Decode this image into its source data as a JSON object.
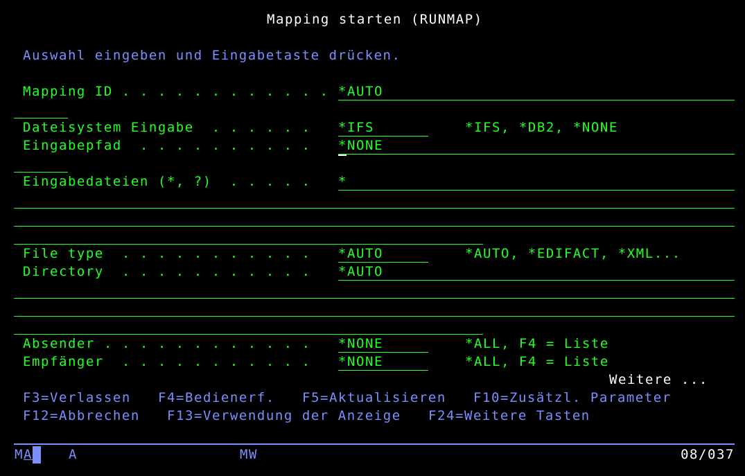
{
  "title": "Mapping starten (RUNMAP)",
  "instruction": "Auswahl eingeben und Eingabetaste drücken.",
  "fields": {
    "mapping_id": {
      "label": "Mapping ID . . . . . . . . . . . .",
      "value": "*AUTO"
    },
    "dateisystem": {
      "label": "Dateisystem Eingabe  . . . . . .",
      "value": "*IFS",
      "hint": "*IFS, *DB2, *NONE"
    },
    "eingabepfad": {
      "label": "Eingabepfad  . . . . . . . . . .",
      "value": "*NONE"
    },
    "eingabedateien": {
      "label": "Eingabedateien (*, ?)  . . . . .",
      "value": "*"
    },
    "file_type": {
      "label": "File type  . . . . . . . . . . .",
      "value": "*AUTO",
      "hint": "*AUTO, *EDIFACT, *XML..."
    },
    "directory": {
      "label": "Directory  . . . . . . . . . . .",
      "value": "*AUTO"
    },
    "absender": {
      "label": "Absender . . . . . . . . . . . .",
      "value": "*NONE",
      "hint": "*ALL, F4 = Liste"
    },
    "empfaenger": {
      "label": "Empfänger  . . . . . . . . . . .",
      "value": "*NONE",
      "hint": "*ALL, F4 = Liste"
    }
  },
  "more": "Weitere ...",
  "fkeys_row1": [
    "F3=Verlassen",
    "F4=Bedienerf.",
    "F5=Aktualisieren",
    "F10=Zusätzl. Parameter"
  ],
  "fkeys_row2": [
    "F12=Abbrechen",
    "F13=Verwendung der Anzeige",
    "F24=Weitere Tasten"
  ],
  "status": {
    "session": "M",
    "mode": "A",
    "indicator": "A",
    "msg": "MW",
    "cursor_pos": "08/037"
  },
  "colors": {
    "field": "#22ff22",
    "text": "#7b8fff",
    "highlight": "#ffffff"
  }
}
